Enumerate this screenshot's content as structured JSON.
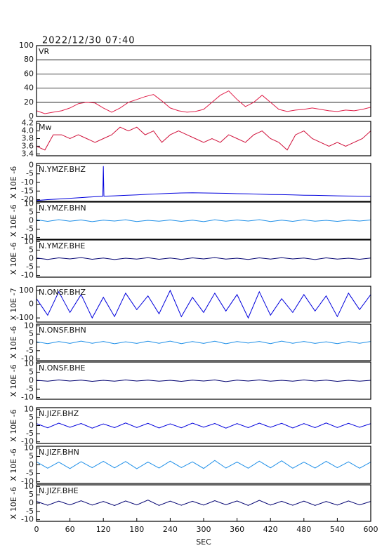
{
  "chart_data": [
    {
      "type": "line",
      "title": "2022/12/30 07:40",
      "name": "VR",
      "color": "#e0204a",
      "grid": true,
      "xlim": [
        0,
        600
      ],
      "ylim": [
        0,
        100
      ],
      "yticks": [
        0,
        20,
        40,
        60,
        80,
        100
      ],
      "x": [
        0,
        15,
        30,
        45,
        60,
        75,
        90,
        105,
        120,
        135,
        150,
        165,
        180,
        195,
        210,
        225,
        240,
        255,
        270,
        285,
        300,
        315,
        330,
        345,
        360,
        375,
        390,
        405,
        420,
        435,
        450,
        465,
        480,
        495,
        510,
        525,
        540,
        555,
        570,
        585,
        600
      ],
      "values": [
        8,
        4,
        6,
        8,
        12,
        18,
        20,
        19,
        12,
        6,
        12,
        20,
        24,
        28,
        31,
        22,
        12,
        8,
        6,
        7,
        10,
        20,
        30,
        36,
        24,
        14,
        20,
        30,
        20,
        10,
        7,
        9,
        10,
        12,
        10,
        8,
        7,
        9,
        8,
        10,
        13
      ]
    },
    {
      "type": "line",
      "name": "Mw",
      "color": "#d0103a",
      "grid": false,
      "xlim": [
        0,
        600
      ],
      "ylim": [
        3.35,
        4.25
      ],
      "yticks": [
        3.4,
        3.6,
        3.8,
        {
          "value": 4,
          "label": "4.0"
        },
        4.2
      ],
      "x": [
        0,
        15,
        30,
        45,
        60,
        75,
        90,
        105,
        120,
        135,
        150,
        165,
        180,
        195,
        210,
        225,
        240,
        255,
        270,
        285,
        300,
        315,
        330,
        345,
        360,
        375,
        390,
        405,
        420,
        435,
        450,
        465,
        480,
        495,
        510,
        525,
        540,
        555,
        570,
        585,
        600
      ],
      "values": [
        3.6,
        3.5,
        3.9,
        3.9,
        3.8,
        3.9,
        3.8,
        3.7,
        3.8,
        3.9,
        4.1,
        4.0,
        4.1,
        3.9,
        4.0,
        3.7,
        3.9,
        4.0,
        3.9,
        3.8,
        3.7,
        3.8,
        3.7,
        3.9,
        3.8,
        3.7,
        3.9,
        4.0,
        3.8,
        3.7,
        3.5,
        3.9,
        4.0,
        3.8,
        3.7,
        3.6,
        3.7,
        3.6,
        3.7,
        3.8,
        4.0
      ]
    },
    {
      "type": "line",
      "name": "N.YMZF.BHZ",
      "ylabel": "X 10E -6",
      "color": "#0000dd",
      "xlim": [
        0,
        600
      ],
      "ylim": [
        -21,
        1
      ],
      "yticks": [
        0,
        -5,
        -10,
        -15,
        -20
      ],
      "x": [
        0,
        20,
        40,
        60,
        80,
        100,
        119,
        120,
        121,
        140,
        160,
        180,
        200,
        220,
        240,
        260,
        280,
        300,
        320,
        340,
        360,
        380,
        400,
        420,
        440,
        460,
        480,
        500,
        520,
        540,
        560,
        580,
        600
      ],
      "values": [
        -20.5,
        -20,
        -19.6,
        -19.2,
        -18.8,
        -18.4,
        -18,
        -0.5,
        -18,
        -17.8,
        -17.5,
        -17.2,
        -16.9,
        -16.6,
        -16.3,
        -16.1,
        -16,
        -16.1,
        -16.2,
        -16.3,
        -16.5,
        -16.6,
        -16.8,
        -17,
        -17.1,
        -17.2,
        -17.4,
        -17.5,
        -17.6,
        -17.8,
        -17.9,
        -18,
        -18.1
      ]
    },
    {
      "type": "line",
      "name": "N.YMZF.BHN",
      "ylabel": "X 10E -6",
      "color": "#1e8fe8",
      "xlim": [
        0,
        600
      ],
      "ylim": [
        -11,
        11
      ],
      "yticks": [
        10,
        5,
        0,
        -5,
        -10
      ],
      "x": [
        0,
        20,
        40,
        60,
        80,
        100,
        120,
        140,
        160,
        180,
        200,
        220,
        240,
        260,
        280,
        300,
        320,
        340,
        360,
        380,
        400,
        420,
        440,
        460,
        480,
        500,
        520,
        540,
        560,
        580,
        600
      ],
      "values": [
        0.5,
        -0.4,
        0.6,
        -0.3,
        0.4,
        -0.6,
        0.3,
        -0.2,
        0.5,
        -0.5,
        0.2,
        -0.3,
        0.4,
        -0.4,
        0.3,
        -0.6,
        0.5,
        -0.3,
        0.4,
        -0.2,
        0.6,
        -0.5,
        0.3,
        -0.4,
        0.5,
        -0.3,
        0.2,
        -0.4,
        0.3,
        -0.2,
        0.4
      ]
    },
    {
      "type": "line",
      "name": "N.YMZF.BHE",
      "ylabel": "X 10E -6",
      "color": "#000070",
      "xlim": [
        0,
        600
      ],
      "ylim": [
        -11,
        11
      ],
      "yticks": [
        10,
        5,
        0,
        -5,
        -10
      ],
      "x": [
        0,
        20,
        40,
        60,
        80,
        100,
        120,
        140,
        160,
        180,
        200,
        220,
        240,
        260,
        280,
        300,
        320,
        340,
        360,
        380,
        400,
        420,
        440,
        460,
        480,
        500,
        520,
        540,
        560,
        580,
        600
      ],
      "values": [
        0.3,
        -0.5,
        0.4,
        -0.2,
        0.6,
        -0.4,
        0.3,
        -0.6,
        0.2,
        -0.3,
        0.5,
        -0.4,
        0.3,
        -0.5,
        0.4,
        -0.2,
        0.6,
        -0.3,
        0.2,
        -0.5,
        0.4,
        -0.3,
        0.5,
        -0.2,
        0.3,
        -0.6,
        0.4,
        -0.3,
        0.2,
        -0.4,
        0.3
      ]
    },
    {
      "type": "line",
      "name": "N.ONSF.BHZ",
      "ylabel": "X 10E -7",
      "color": "#0000dd",
      "xlim": [
        0,
        600
      ],
      "ylim": [
        -130,
        130
      ],
      "yticks": [
        100,
        0,
        -100
      ],
      "x": [
        0,
        20,
        40,
        60,
        80,
        100,
        120,
        140,
        160,
        180,
        200,
        220,
        240,
        260,
        280,
        300,
        320,
        340,
        360,
        380,
        400,
        420,
        440,
        460,
        480,
        500,
        520,
        540,
        560,
        580,
        600
      ],
      "values": [
        40,
        -80,
        90,
        -60,
        70,
        -100,
        50,
        -90,
        80,
        -40,
        60,
        -70,
        100,
        -90,
        50,
        -60,
        80,
        -50,
        70,
        -100,
        90,
        -80,
        40,
        -60,
        70,
        -50,
        60,
        -90,
        80,
        -40,
        70
      ]
    },
    {
      "type": "line",
      "name": "N.ONSF.BHN",
      "ylabel": "X 10E -6",
      "color": "#1e8fe8",
      "xlim": [
        0,
        600
      ],
      "ylim": [
        -11,
        11
      ],
      "yticks": [
        10,
        5,
        0,
        -5,
        -10
      ],
      "x": [
        0,
        20,
        40,
        60,
        80,
        100,
        120,
        140,
        160,
        180,
        200,
        220,
        240,
        260,
        280,
        300,
        320,
        340,
        360,
        380,
        400,
        420,
        440,
        460,
        480,
        500,
        520,
        540,
        560,
        580,
        600
      ],
      "values": [
        0.4,
        -0.7,
        0.5,
        -0.6,
        0.8,
        -0.5,
        0.6,
        -0.8,
        0.4,
        -0.6,
        0.7,
        -0.5,
        0.8,
        -0.7,
        0.5,
        -0.6,
        0.7,
        -0.8,
        0.5,
        -0.4,
        0.6,
        -0.7,
        0.8,
        -0.5,
        0.6,
        -0.6,
        0.4,
        -0.7,
        0.5,
        -0.5,
        0.6
      ]
    },
    {
      "type": "line",
      "name": "N.ONSF.BHE",
      "ylabel": "X 10E -6",
      "color": "#000070",
      "xlim": [
        0,
        600
      ],
      "ylim": [
        -11,
        11
      ],
      "yticks": [
        10,
        5,
        0,
        -5,
        -10
      ],
      "x": [
        0,
        20,
        40,
        60,
        80,
        100,
        120,
        140,
        160,
        180,
        200,
        220,
        240,
        260,
        280,
        300,
        320,
        340,
        360,
        380,
        400,
        420,
        440,
        460,
        480,
        500,
        520,
        540,
        560,
        580,
        600
      ],
      "values": [
        0.2,
        -0.3,
        0.4,
        -0.2,
        0.3,
        -0.4,
        0.2,
        -0.3,
        0.4,
        -0.2,
        0.3,
        -0.3,
        0.2,
        -0.4,
        0.3,
        -0.2,
        0.4,
        -0.6,
        0.3,
        -0.2,
        0.4,
        -0.3,
        0.2,
        -0.3,
        0.4,
        -0.2,
        0.3,
        -0.4,
        0.2,
        -0.3,
        0.2
      ]
    },
    {
      "type": "line",
      "name": "N.JIZF.BHZ",
      "ylabel": "X 10E -6",
      "color": "#0000dd",
      "xlim": [
        0,
        600
      ],
      "ylim": [
        -11,
        11
      ],
      "yticks": [
        10,
        5,
        0,
        -5,
        -10
      ],
      "x": [
        0,
        20,
        40,
        60,
        80,
        100,
        120,
        140,
        160,
        180,
        200,
        220,
        240,
        260,
        280,
        300,
        320,
        340,
        360,
        380,
        400,
        420,
        440,
        460,
        480,
        500,
        520,
        540,
        560,
        580,
        600
      ],
      "values": [
        1.2,
        -1.4,
        1.5,
        -1.1,
        1.3,
        -1.6,
        1.0,
        -1.3,
        1.6,
        -1.2,
        1.4,
        -1.5,
        1.1,
        -1.4,
        1.5,
        -1.0,
        1.3,
        -1.6,
        1.2,
        -1.3,
        1.5,
        -1.1,
        1.4,
        -1.5,
        1.2,
        -1.3,
        1.6,
        -1.2,
        1.4,
        -1.1,
        1.2
      ]
    },
    {
      "type": "line",
      "name": "N.JIZF.BHN",
      "ylabel": "X 10E -6",
      "color": "#1e8fe8",
      "xlim": [
        0,
        600
      ],
      "ylim": [
        -11,
        11
      ],
      "yticks": [
        10,
        5,
        0,
        -5,
        -10
      ],
      "x": [
        0,
        20,
        40,
        60,
        80,
        100,
        120,
        140,
        160,
        180,
        200,
        220,
        240,
        260,
        280,
        300,
        320,
        340,
        360,
        380,
        400,
        420,
        440,
        460,
        480,
        500,
        520,
        540,
        560,
        580,
        600
      ],
      "values": [
        1.8,
        -2.0,
        1.6,
        -2.2,
        1.9,
        -1.7,
        2.1,
        -1.8,
        2.0,
        -2.3,
        1.7,
        -1.9,
        2.2,
        -1.6,
        1.8,
        -2.1,
        2.6,
        -1.9,
        1.7,
        -2.0,
        2.2,
        -1.8,
        2.4,
        -2.0,
        1.6,
        -1.9,
        2.1,
        -1.7,
        1.8,
        -2.0,
        1.6
      ]
    },
    {
      "type": "line",
      "name": "N.JIZF.BHE",
      "ylabel": "X 10E -6",
      "color": "#000070",
      "xlabel": "SEC",
      "xlim": [
        0,
        600
      ],
      "ylim": [
        -11,
        11
      ],
      "yticks": [
        10,
        5,
        0,
        -5,
        -10
      ],
      "xticks": [
        0,
        60,
        120,
        180,
        240,
        300,
        360,
        420,
        480,
        540,
        600
      ],
      "x": [
        0,
        20,
        40,
        60,
        80,
        100,
        120,
        140,
        160,
        180,
        200,
        220,
        240,
        260,
        280,
        300,
        320,
        340,
        360,
        380,
        400,
        420,
        440,
        460,
        480,
        500,
        520,
        540,
        560,
        580,
        600
      ],
      "values": [
        1.0,
        -1.3,
        1.2,
        -1.1,
        1.4,
        -1.2,
        1.0,
        -1.5,
        1.3,
        -1.1,
        1.8,
        -1.4,
        1.2,
        -1.3,
        1.1,
        -1.2,
        1.5,
        -1.0,
        1.3,
        -1.4,
        1.7,
        -1.2,
        1.1,
        -1.3,
        1.2,
        -1.4,
        1.0,
        -1.2,
        1.3,
        -1.1,
        1.0
      ]
    }
  ]
}
